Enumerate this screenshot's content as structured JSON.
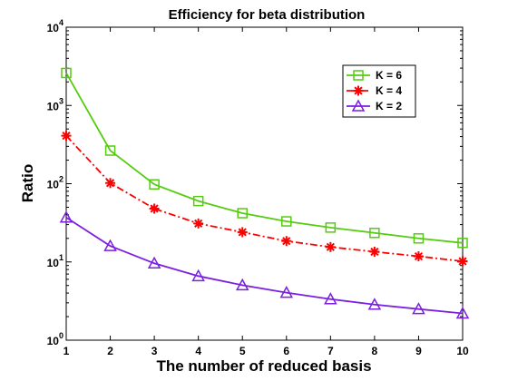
{
  "chart_data": {
    "type": "line",
    "title": "Efficiency for beta distribution",
    "xlabel": "The number of reduced basis",
    "ylabel": "Ratio",
    "x": [
      1,
      2,
      3,
      4,
      5,
      6,
      7,
      8,
      9,
      10
    ],
    "xlim": [
      1,
      10
    ],
    "ylim": [
      1,
      10000
    ],
    "yscale": "log",
    "x_ticks": [
      "1",
      "2",
      "3",
      "4",
      "5",
      "6",
      "7",
      "8",
      "9",
      "10"
    ],
    "y_ticks": [
      {
        "base": "10",
        "exp": "0"
      },
      {
        "base": "10",
        "exp": "1"
      },
      {
        "base": "10",
        "exp": "2"
      },
      {
        "base": "10",
        "exp": "3"
      },
      {
        "base": "10",
        "exp": "4"
      }
    ],
    "grid": false,
    "legend_position": "top-right",
    "series": [
      {
        "name": "K = 6",
        "color": "#55cc11",
        "marker": "square",
        "dash": "solid",
        "values": [
          2600,
          265,
          98,
          60,
          42,
          33,
          27.5,
          23.5,
          20,
          17.5
        ]
      },
      {
        "name": "K = 4",
        "color": "#ff0000",
        "marker": "asterisk",
        "dash": "dashdot",
        "values": [
          410,
          102,
          48,
          31,
          24,
          18.5,
          15.5,
          13.5,
          11.8,
          10.2
        ]
      },
      {
        "name": "K = 2",
        "color": "#7b1fe0",
        "marker": "triangle",
        "dash": "solid",
        "values": [
          37,
          16,
          9.6,
          6.6,
          5.05,
          4.05,
          3.35,
          2.85,
          2.5,
          2.2
        ]
      }
    ]
  }
}
